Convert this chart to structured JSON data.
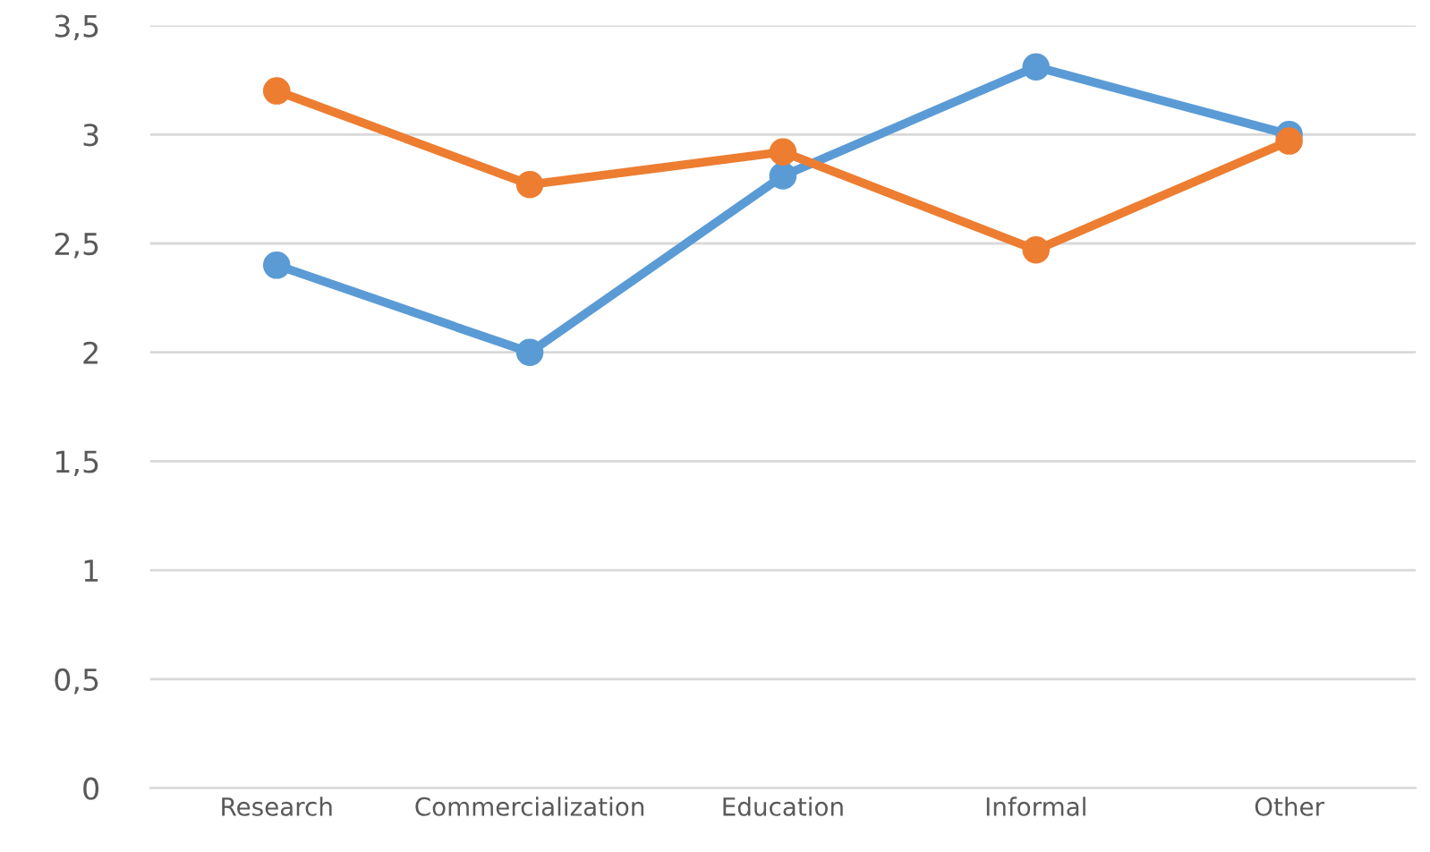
{
  "chart_data": {
    "type": "line",
    "categories": [
      "Research",
      "Commercialization",
      "Education",
      "Informal",
      "Other"
    ],
    "series": [
      {
        "color": "#5b9bd5",
        "values": [
          2.4,
          2.0,
          2.81,
          3.31,
          3.0
        ]
      },
      {
        "color": "#ed7d31",
        "values": [
          3.2,
          2.77,
          2.92,
          2.47,
          2.97
        ]
      }
    ],
    "ylim": [
      0,
      3.5
    ],
    "yticks": [
      {
        "value": 0,
        "label": "0"
      },
      {
        "value": 0.5,
        "label": "0,5"
      },
      {
        "value": 1,
        "label": "1"
      },
      {
        "value": 1.5,
        "label": "1,5"
      },
      {
        "value": 2,
        "label": "2"
      },
      {
        "value": 2.5,
        "label": "2,5"
      },
      {
        "value": 3,
        "label": "3"
      },
      {
        "value": 3.5,
        "label": "3,5"
      }
    ],
    "grid": "y",
    "marker": "circle",
    "line_style": "solid"
  }
}
